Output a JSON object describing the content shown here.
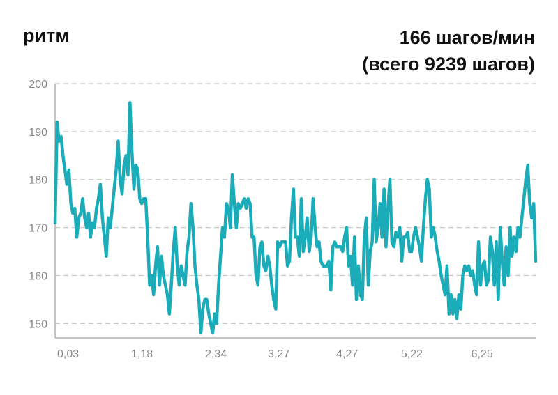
{
  "header": {
    "metric_label": "ритм",
    "summary_line1": "166 шагов/мин",
    "summary_line2": "(всего 9239 шагов)"
  },
  "colors": {
    "line": "#1aacb8",
    "grid": "#c8c8c8",
    "axis": "#b0b0b0",
    "tick_text": "#888888"
  },
  "chart_data": {
    "type": "line",
    "title": "",
    "xlabel": "",
    "ylabel": "",
    "ylim": [
      147,
      200
    ],
    "yticks": [
      150,
      160,
      170,
      180,
      190,
      200
    ],
    "xticks": [
      "0,03",
      "1,18",
      "2,34",
      "3,27",
      "4,27",
      "5,22",
      "6,25"
    ],
    "xrange": [
      0,
      260
    ],
    "xtick_positions": [
      7,
      47,
      87,
      121,
      158,
      193,
      231
    ],
    "grid": true,
    "series": [
      {
        "values": [
          171,
          192,
          188,
          189,
          185,
          182,
          179,
          182,
          175,
          173,
          174,
          168,
          172,
          173,
          176,
          172,
          170,
          173,
          168,
          171,
          170,
          174,
          176,
          179,
          172,
          168,
          164,
          172,
          170,
          174,
          178,
          182,
          188,
          180,
          177,
          183,
          185,
          181,
          196,
          186,
          178,
          183,
          182,
          176,
          175,
          176,
          176,
          168,
          158,
          160,
          156,
          162,
          166,
          158,
          164,
          160,
          158,
          156,
          152,
          158,
          165,
          170,
          162,
          158,
          162,
          160,
          158,
          165,
          168,
          175,
          170,
          162,
          158,
          155,
          148,
          153,
          155,
          155,
          152,
          150,
          148,
          152,
          150,
          158,
          164,
          170,
          168,
          175,
          174,
          170,
          181,
          175,
          170,
          175,
          174,
          175,
          176,
          174,
          176,
          175,
          168,
          168,
          160,
          158,
          166,
          167,
          162,
          161,
          164,
          162,
          158,
          155,
          153,
          167,
          166,
          167,
          167,
          167,
          162,
          163,
          172,
          178,
          168,
          168,
          164,
          176,
          165,
          168,
          172,
          165,
          168,
          176,
          170,
          166,
          167,
          163,
          162,
          162,
          162,
          163,
          157,
          166,
          167,
          166,
          166,
          166,
          165,
          168,
          170,
          162,
          164,
          158,
          168,
          155,
          162,
          156,
          155,
          168,
          172,
          158,
          165,
          167,
          180,
          167,
          170,
          175,
          168,
          178,
          166,
          174,
          180,
          167,
          166,
          169,
          168,
          170,
          163,
          168,
          168,
          169,
          165,
          165,
          168,
          170,
          168,
          166,
          163,
          170,
          176,
          180,
          178,
          168,
          170,
          168,
          165,
          163,
          160,
          158,
          156,
          162,
          152,
          156,
          152,
          155,
          151,
          156,
          153,
          160,
          162,
          161,
          162,
          160,
          161,
          158,
          156,
          167,
          158,
          162,
          163,
          158,
          159,
          168,
          165,
          158,
          167,
          155,
          170,
          163,
          158,
          166,
          160,
          170,
          164,
          168,
          165,
          170,
          168,
          172,
          176,
          180,
          183,
          175,
          172,
          175,
          163
        ]
      }
    ]
  }
}
